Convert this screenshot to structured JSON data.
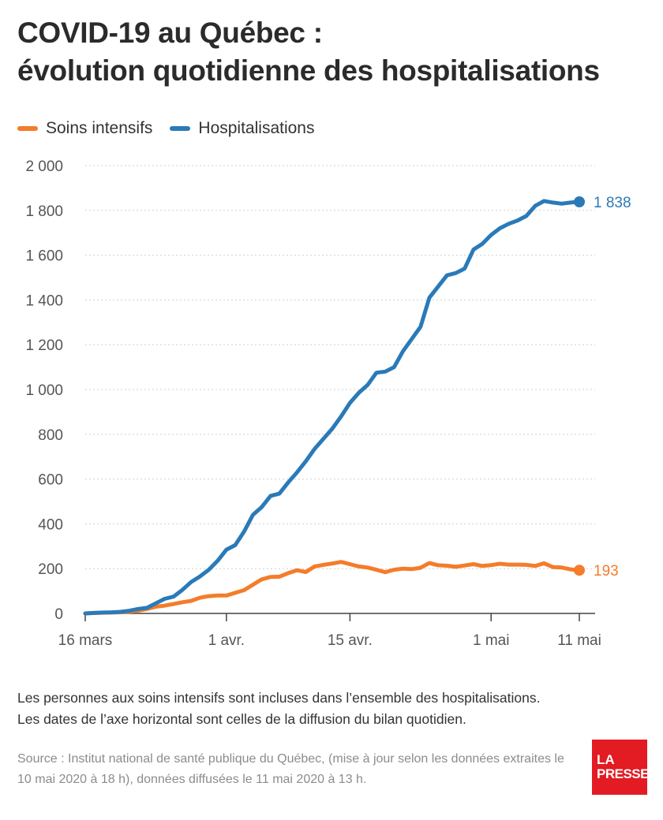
{
  "title": {
    "line1": "COVID-19 au Québec :",
    "line2": "évolution quotidienne des hospitalisations"
  },
  "colors": {
    "hosp": "#2a7ab8",
    "icu": "#f47c2a",
    "grid": "#cfcfcf",
    "tick": "#555555"
  },
  "chart_data": {
    "type": "line",
    "title": "COVID-19 au Québec : évolution quotidienne des hospitalisations",
    "xlabel": "",
    "ylabel": "",
    "ylim": [
      0,
      2000
    ],
    "y_ticks": [
      0,
      200,
      400,
      600,
      800,
      1000,
      1200,
      1400,
      1600,
      1800,
      2000
    ],
    "y_tick_labels": [
      "0",
      "200",
      "400",
      "600",
      "800",
      "1 000",
      "1 200",
      "1 400",
      "1 600",
      "1 800",
      "2 000"
    ],
    "x_range": [
      "2020-03-16",
      "2020-05-11"
    ],
    "x_ticks": [
      {
        "date": "2020-03-16",
        "label": "16 mars"
      },
      {
        "date": "2020-04-01",
        "label": "1 avr."
      },
      {
        "date": "2020-04-15",
        "label": "15 avr."
      },
      {
        "date": "2020-05-01",
        "label": "1 mai"
      },
      {
        "date": "2020-05-11",
        "label": "11 mai"
      }
    ],
    "grid": true,
    "legend_position": "top-left",
    "series": [
      {
        "name": "Soins intensifs",
        "key": "icu",
        "x": [
          "2020-03-16",
          "2020-03-17",
          "2020-03-18",
          "2020-03-19",
          "2020-03-20",
          "2020-03-21",
          "2020-03-22",
          "2020-03-23",
          "2020-03-24",
          "2020-03-25",
          "2020-03-26",
          "2020-03-27",
          "2020-03-28",
          "2020-03-29",
          "2020-03-30",
          "2020-03-31",
          "2020-04-01",
          "2020-04-02",
          "2020-04-03",
          "2020-04-04",
          "2020-04-05",
          "2020-04-06",
          "2020-04-07",
          "2020-04-08",
          "2020-04-09",
          "2020-04-10",
          "2020-04-11",
          "2020-04-12",
          "2020-04-13",
          "2020-04-14",
          "2020-04-15",
          "2020-04-16",
          "2020-04-17",
          "2020-04-18",
          "2020-04-19",
          "2020-04-20",
          "2020-04-21",
          "2020-04-22",
          "2020-04-23",
          "2020-04-24",
          "2020-04-25",
          "2020-04-26",
          "2020-04-27",
          "2020-04-28",
          "2020-04-29",
          "2020-04-30",
          "2020-05-01",
          "2020-05-02",
          "2020-05-03",
          "2020-05-04",
          "2020-05-05",
          "2020-05-06",
          "2020-05-07",
          "2020-05-08",
          "2020-05-09",
          "2020-05-10",
          "2020-05-11"
        ],
        "values": [
          0,
          2,
          3,
          4,
          5,
          8,
          12,
          20,
          30,
          35,
          42,
          50,
          56,
          70,
          77,
          80,
          80,
          92,
          104,
          128,
          152,
          163,
          164,
          180,
          193,
          185,
          210,
          217,
          223,
          230,
          220,
          210,
          205,
          195,
          184,
          195,
          200,
          198,
          204,
          225,
          215,
          213,
          208,
          214,
          220,
          212,
          216,
          222,
          218,
          218,
          217,
          212,
          224,
          207,
          205,
          197,
          193
        ],
        "final_label": "193"
      },
      {
        "name": "Hospitalisations",
        "key": "hosp",
        "x": [
          "2020-03-16",
          "2020-03-17",
          "2020-03-18",
          "2020-03-19",
          "2020-03-20",
          "2020-03-21",
          "2020-03-22",
          "2020-03-23",
          "2020-03-24",
          "2020-03-25",
          "2020-03-26",
          "2020-03-27",
          "2020-03-28",
          "2020-03-29",
          "2020-03-30",
          "2020-03-31",
          "2020-04-01",
          "2020-04-02",
          "2020-04-03",
          "2020-04-04",
          "2020-04-05",
          "2020-04-06",
          "2020-04-07",
          "2020-04-08",
          "2020-04-09",
          "2020-04-10",
          "2020-04-11",
          "2020-04-12",
          "2020-04-13",
          "2020-04-14",
          "2020-04-15",
          "2020-04-16",
          "2020-04-17",
          "2020-04-18",
          "2020-04-19",
          "2020-04-20",
          "2020-04-21",
          "2020-04-22",
          "2020-04-23",
          "2020-04-24",
          "2020-04-25",
          "2020-04-26",
          "2020-04-27",
          "2020-04-28",
          "2020-04-29",
          "2020-04-30",
          "2020-05-01",
          "2020-05-02",
          "2020-05-03",
          "2020-05-04",
          "2020-05-05",
          "2020-05-06",
          "2020-05-07",
          "2020-05-08",
          "2020-05-09",
          "2020-05-10",
          "2020-05-11"
        ],
        "values": [
          0,
          2,
          4,
          5,
          7,
          12,
          20,
          25,
          45,
          65,
          75,
          105,
          140,
          165,
          195,
          235,
          285,
          305,
          365,
          440,
          475,
          525,
          535,
          585,
          630,
          680,
          735,
          780,
          825,
          880,
          940,
          985,
          1020,
          1075,
          1080,
          1100,
          1170,
          1225,
          1280,
          1410,
          1460,
          1510,
          1520,
          1540,
          1625,
          1650,
          1690,
          1720,
          1740,
          1755,
          1775,
          1820,
          1842,
          1835,
          1830,
          1835,
          1838
        ],
        "final_label": "1 838"
      }
    ]
  },
  "note": {
    "line1": "Les personnes aux soins intensifs sont incluses dans l’ensemble des hospitalisations.",
    "line2": "Les dates de l’axe horizontal sont celles de la diffusion du bilan quotidien."
  },
  "source": "Source : Institut national de santé publique du Québec, (mise à jour selon les données extraites le 10 mai 2020 à 18 h), données diffusées le 11 mai 2020 à 13 h.",
  "logo": {
    "line1": "LA",
    "line2": "PRESSE"
  }
}
